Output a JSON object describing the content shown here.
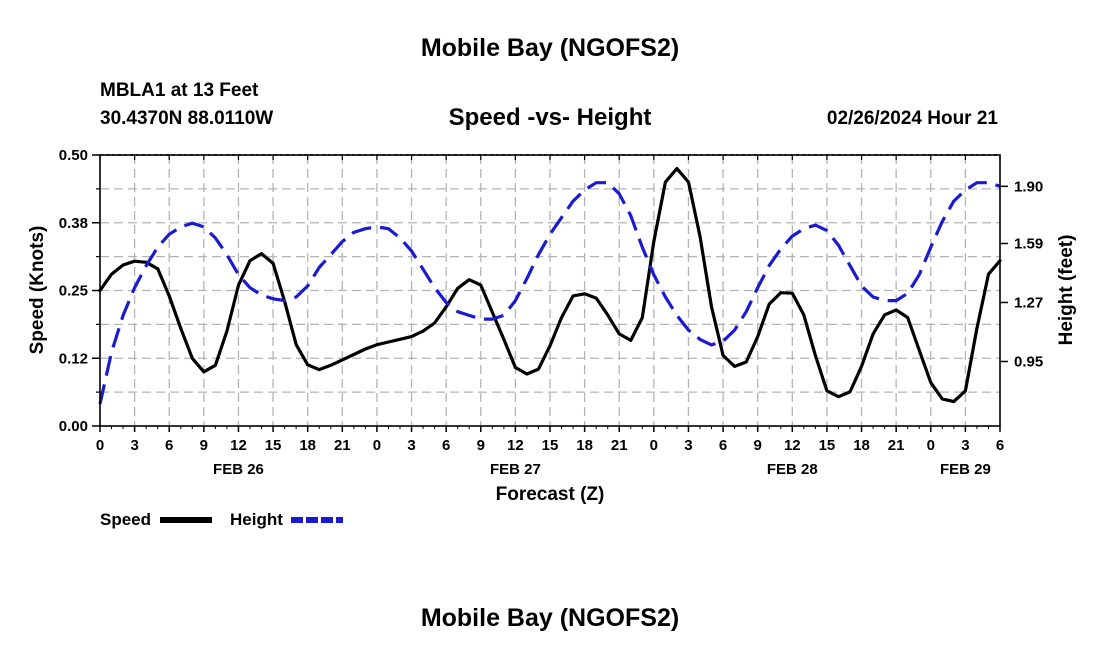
{
  "header": {
    "title": "Mobile Bay (NGOFS2)",
    "station": "MBLA1 at 13 Feet",
    "coords": "30.4370N  88.0110W",
    "subtitle": "Speed -vs- Height",
    "datetime": "02/26/2024 Hour 21",
    "footer_title": "Mobile Bay (NGOFS2)"
  },
  "legend": {
    "speed_label": "Speed",
    "height_label": "Height"
  },
  "colors": {
    "speed": "#000000",
    "height": "#1a1ad0",
    "grid": "#b4b4b4"
  },
  "chart_data": {
    "type": "line",
    "xlabel": "Forecast (Z)",
    "ylabel": "Speed (Knots)",
    "y2label": "Height (feet)",
    "xlim": [
      0,
      78
    ],
    "ylim": [
      0,
      0.5
    ],
    "y2lim": [
      0.6,
      2.07
    ],
    "x_ticks": [
      0,
      3,
      6,
      9,
      12,
      15,
      18,
      21,
      24,
      27,
      30,
      33,
      36,
      39,
      42,
      45,
      48,
      51,
      54,
      57,
      60,
      63,
      66,
      69,
      72,
      75,
      78
    ],
    "x_tick_labels": [
      "0",
      "3",
      "6",
      "9",
      "12",
      "15",
      "18",
      "21",
      "0",
      "3",
      "6",
      "9",
      "12",
      "15",
      "18",
      "21",
      "0",
      "3",
      "6",
      "9",
      "12",
      "15",
      "18",
      "21",
      "0",
      "3",
      "6"
    ],
    "date_labels": [
      {
        "x": 12,
        "label": "FEB 26"
      },
      {
        "x": 36,
        "label": "FEB 27"
      },
      {
        "x": 60,
        "label": "FEB 28"
      },
      {
        "x": 75,
        "label": "FEB 29"
      }
    ],
    "y_ticks": [
      0,
      0.125,
      0.25,
      0.375,
      0.5
    ],
    "y_tick_labels": [
      "0.00",
      "0.12",
      "0.25",
      "0.38",
      "0.50"
    ],
    "y2_ticks": [
      0.95,
      1.27,
      1.59,
      1.9
    ],
    "y2_tick_labels": [
      "0.95",
      "1.27",
      "1.59",
      "1.90"
    ],
    "series": [
      {
        "name": "Speed",
        "axis": "left",
        "style": "solid",
        "x": [
          0,
          1,
          2,
          3,
          4,
          5,
          6,
          7,
          8,
          9,
          10,
          11,
          12,
          13,
          14,
          15,
          16,
          17,
          18,
          19,
          20,
          21,
          22,
          23,
          24,
          25,
          26,
          27,
          28,
          29,
          30,
          31,
          32,
          33,
          34,
          35,
          36,
          37,
          38,
          39,
          40,
          41,
          42,
          43,
          44,
          45,
          46,
          47,
          48,
          49,
          50,
          51,
          52,
          53,
          54,
          55,
          56,
          57,
          58,
          59,
          60,
          61,
          62,
          63,
          64,
          65,
          66,
          67,
          68,
          69,
          70,
          71,
          72,
          73,
          74,
          75,
          76,
          77,
          78
        ],
        "values": [
          0.25,
          0.28,
          0.297,
          0.304,
          0.302,
          0.29,
          0.24,
          0.18,
          0.125,
          0.1,
          0.112,
          0.175,
          0.26,
          0.305,
          0.318,
          0.3,
          0.23,
          0.15,
          0.113,
          0.104,
          0.112,
          0.122,
          0.132,
          0.142,
          0.15,
          0.155,
          0.16,
          0.165,
          0.175,
          0.19,
          0.22,
          0.254,
          0.27,
          0.26,
          0.21,
          0.16,
          0.108,
          0.096,
          0.105,
          0.148,
          0.2,
          0.24,
          0.244,
          0.236,
          0.205,
          0.17,
          0.158,
          0.2,
          0.34,
          0.45,
          0.475,
          0.45,
          0.35,
          0.22,
          0.13,
          0.11,
          0.118,
          0.165,
          0.225,
          0.246,
          0.245,
          0.205,
          0.13,
          0.065,
          0.054,
          0.063,
          0.11,
          0.17,
          0.205,
          0.214,
          0.2,
          0.14,
          0.08,
          0.05,
          0.045,
          0.065,
          0.18,
          0.28,
          0.305
        ]
      },
      {
        "name": "Height",
        "axis": "right",
        "style": "dashed",
        "x": [
          0,
          1,
          2,
          3,
          4,
          5,
          6,
          7,
          8,
          9,
          10,
          11,
          12,
          13,
          14,
          15,
          16,
          17,
          18,
          19,
          20,
          21,
          22,
          23,
          24,
          25,
          26,
          27,
          28,
          29,
          30,
          31,
          32,
          33,
          34,
          35,
          36,
          37,
          38,
          39,
          40,
          41,
          42,
          43,
          44,
          45,
          46,
          47,
          48,
          49,
          50,
          51,
          52,
          53,
          54,
          55,
          56,
          57,
          58,
          59,
          60,
          61,
          62,
          63,
          64,
          65,
          66,
          67,
          68,
          69,
          70,
          71,
          72,
          73,
          74,
          75,
          76,
          77,
          78
        ],
        "values": [
          0.72,
          1.0,
          1.2,
          1.35,
          1.47,
          1.57,
          1.64,
          1.68,
          1.7,
          1.68,
          1.62,
          1.53,
          1.42,
          1.35,
          1.31,
          1.29,
          1.28,
          1.3,
          1.36,
          1.46,
          1.53,
          1.6,
          1.65,
          1.67,
          1.68,
          1.67,
          1.62,
          1.55,
          1.45,
          1.35,
          1.27,
          1.22,
          1.2,
          1.18,
          1.18,
          1.2,
          1.28,
          1.4,
          1.53,
          1.64,
          1.73,
          1.82,
          1.88,
          1.92,
          1.92,
          1.86,
          1.74,
          1.57,
          1.42,
          1.3,
          1.2,
          1.12,
          1.07,
          1.04,
          1.06,
          1.12,
          1.22,
          1.35,
          1.47,
          1.56,
          1.63,
          1.67,
          1.69,
          1.66,
          1.58,
          1.47,
          1.36,
          1.3,
          1.28,
          1.28,
          1.32,
          1.42,
          1.57,
          1.71,
          1.82,
          1.88,
          1.92,
          1.92,
          1.9
        ]
      }
    ]
  }
}
